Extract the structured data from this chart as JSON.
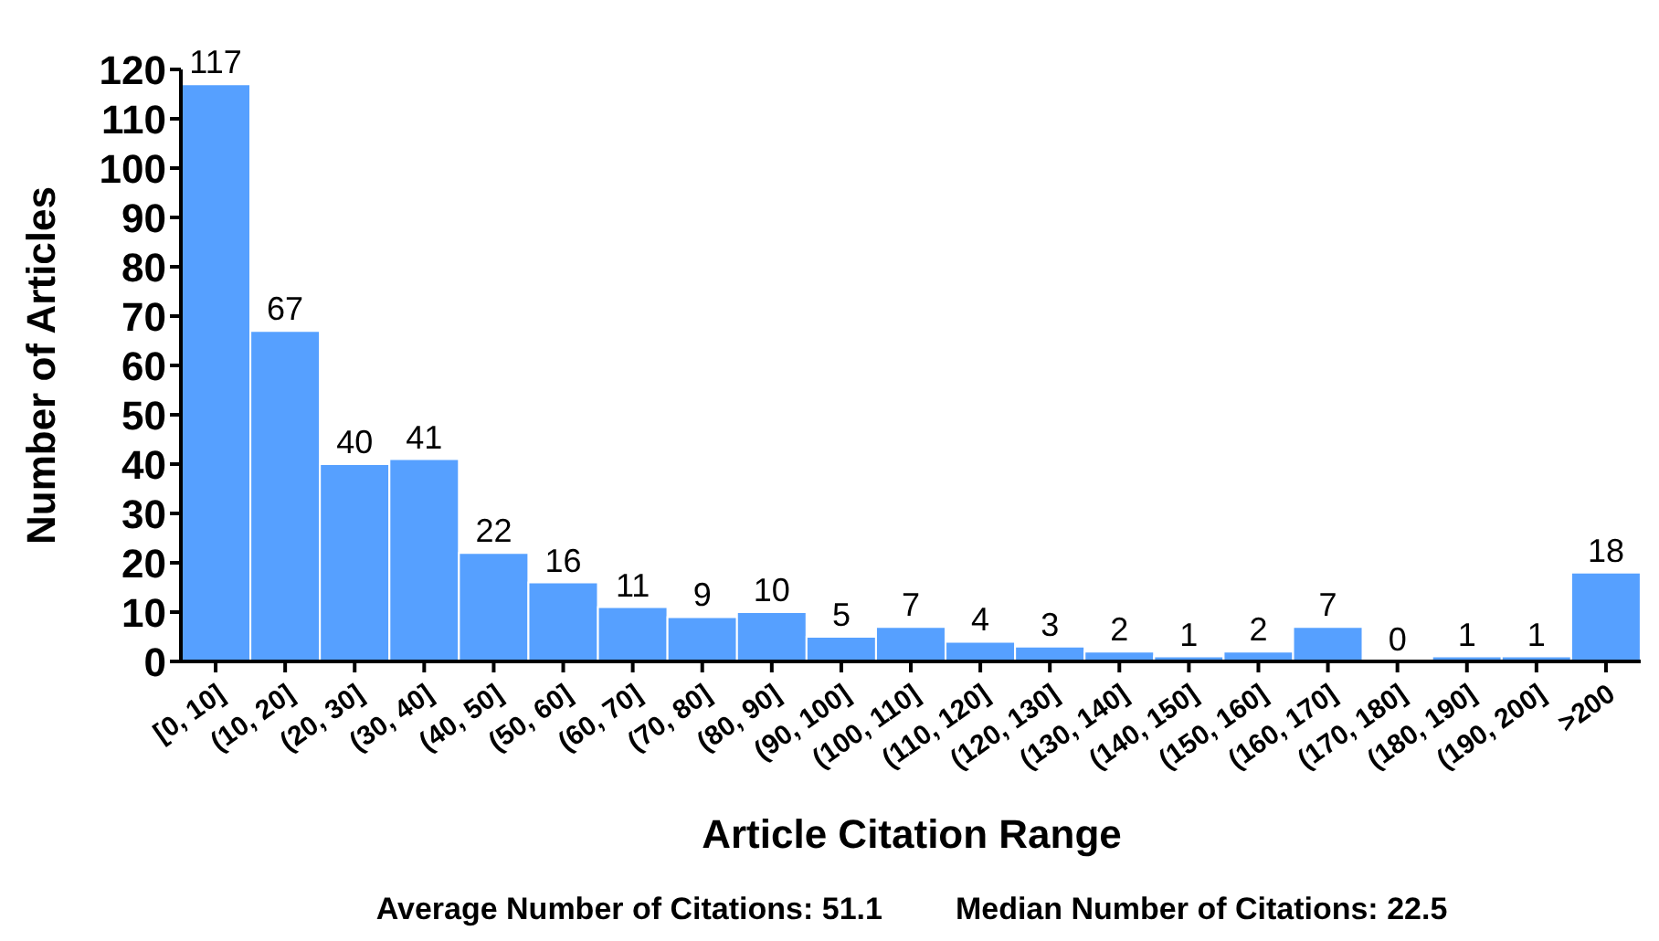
{
  "chart_data": {
    "type": "bar",
    "xlabel": "Article Citation Range",
    "ylabel": "Number of Articles",
    "categories": [
      "[0, 10]",
      "(10, 20]",
      "(20, 30]",
      "(30, 40]",
      "(40, 50]",
      "(50, 60]",
      "(60, 70]",
      "(70, 80]",
      "(80, 90]",
      "(90, 100]",
      "(100, 110]",
      "(110, 120]",
      "(120, 130]",
      "(130, 140]",
      "(140, 150]",
      "(150, 160]",
      "(160, 170]",
      "(170, 180]",
      "(180, 190]",
      "(190, 200]",
      ">200"
    ],
    "values": [
      117,
      67,
      40,
      41,
      22,
      16,
      11,
      9,
      10,
      5,
      7,
      4,
      3,
      2,
      1,
      2,
      7,
      0,
      1,
      1,
      18
    ],
    "color": "#56a0ff",
    "ylim": [
      0,
      120
    ],
    "yticks": [
      0,
      10,
      20,
      30,
      40,
      50,
      60,
      70,
      80,
      90,
      100,
      110,
      120
    ],
    "grid": false,
    "data_labels": true,
    "annotations": [
      "Average Number of Citations: 51.1",
      "Median Number of Citations: 22.5"
    ]
  }
}
